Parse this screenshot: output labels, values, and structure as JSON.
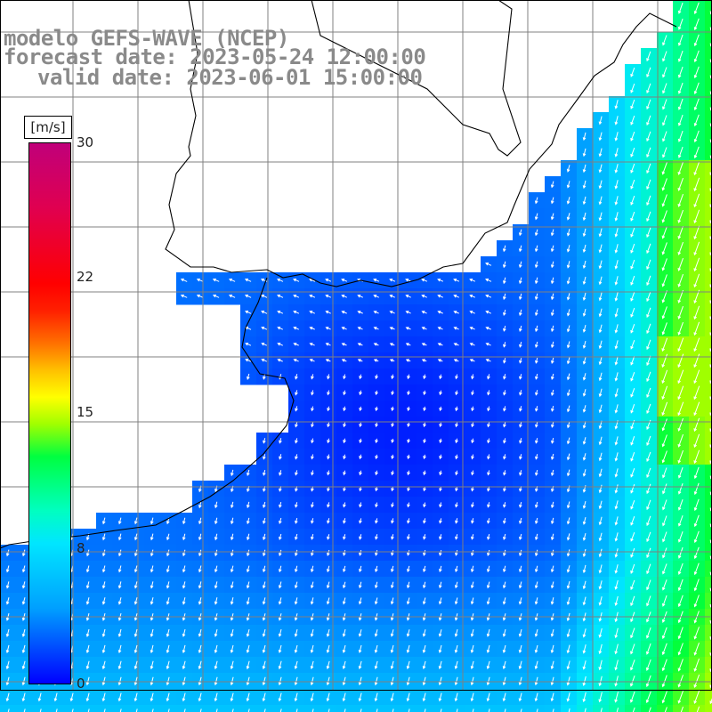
{
  "title": {
    "line1": "modelo GEFS-WAVE (NCEP)",
    "line2": "forecast date: 2023-05-24 12:00:00",
    "line3": "valid date: 2023-06-01 15:00:00"
  },
  "colorbar": {
    "unit": "[m/s]",
    "ticks": [
      "30",
      "22",
      "15",
      "8",
      "0"
    ],
    "tick_values": [
      30,
      22,
      15,
      8,
      0
    ],
    "colors": [
      "#0000ff",
      "#00a0ff",
      "#00e6ff",
      "#00ff40",
      "#ffff00",
      "#ff7000",
      "#ff0000",
      "#c0007a"
    ]
  },
  "map": {
    "variable": "wind speed and direction",
    "land_color": "#ffffff",
    "grid_color": "#808080",
    "arrow_color": "#ffffff",
    "dominant_wind_direction": "southward"
  }
}
